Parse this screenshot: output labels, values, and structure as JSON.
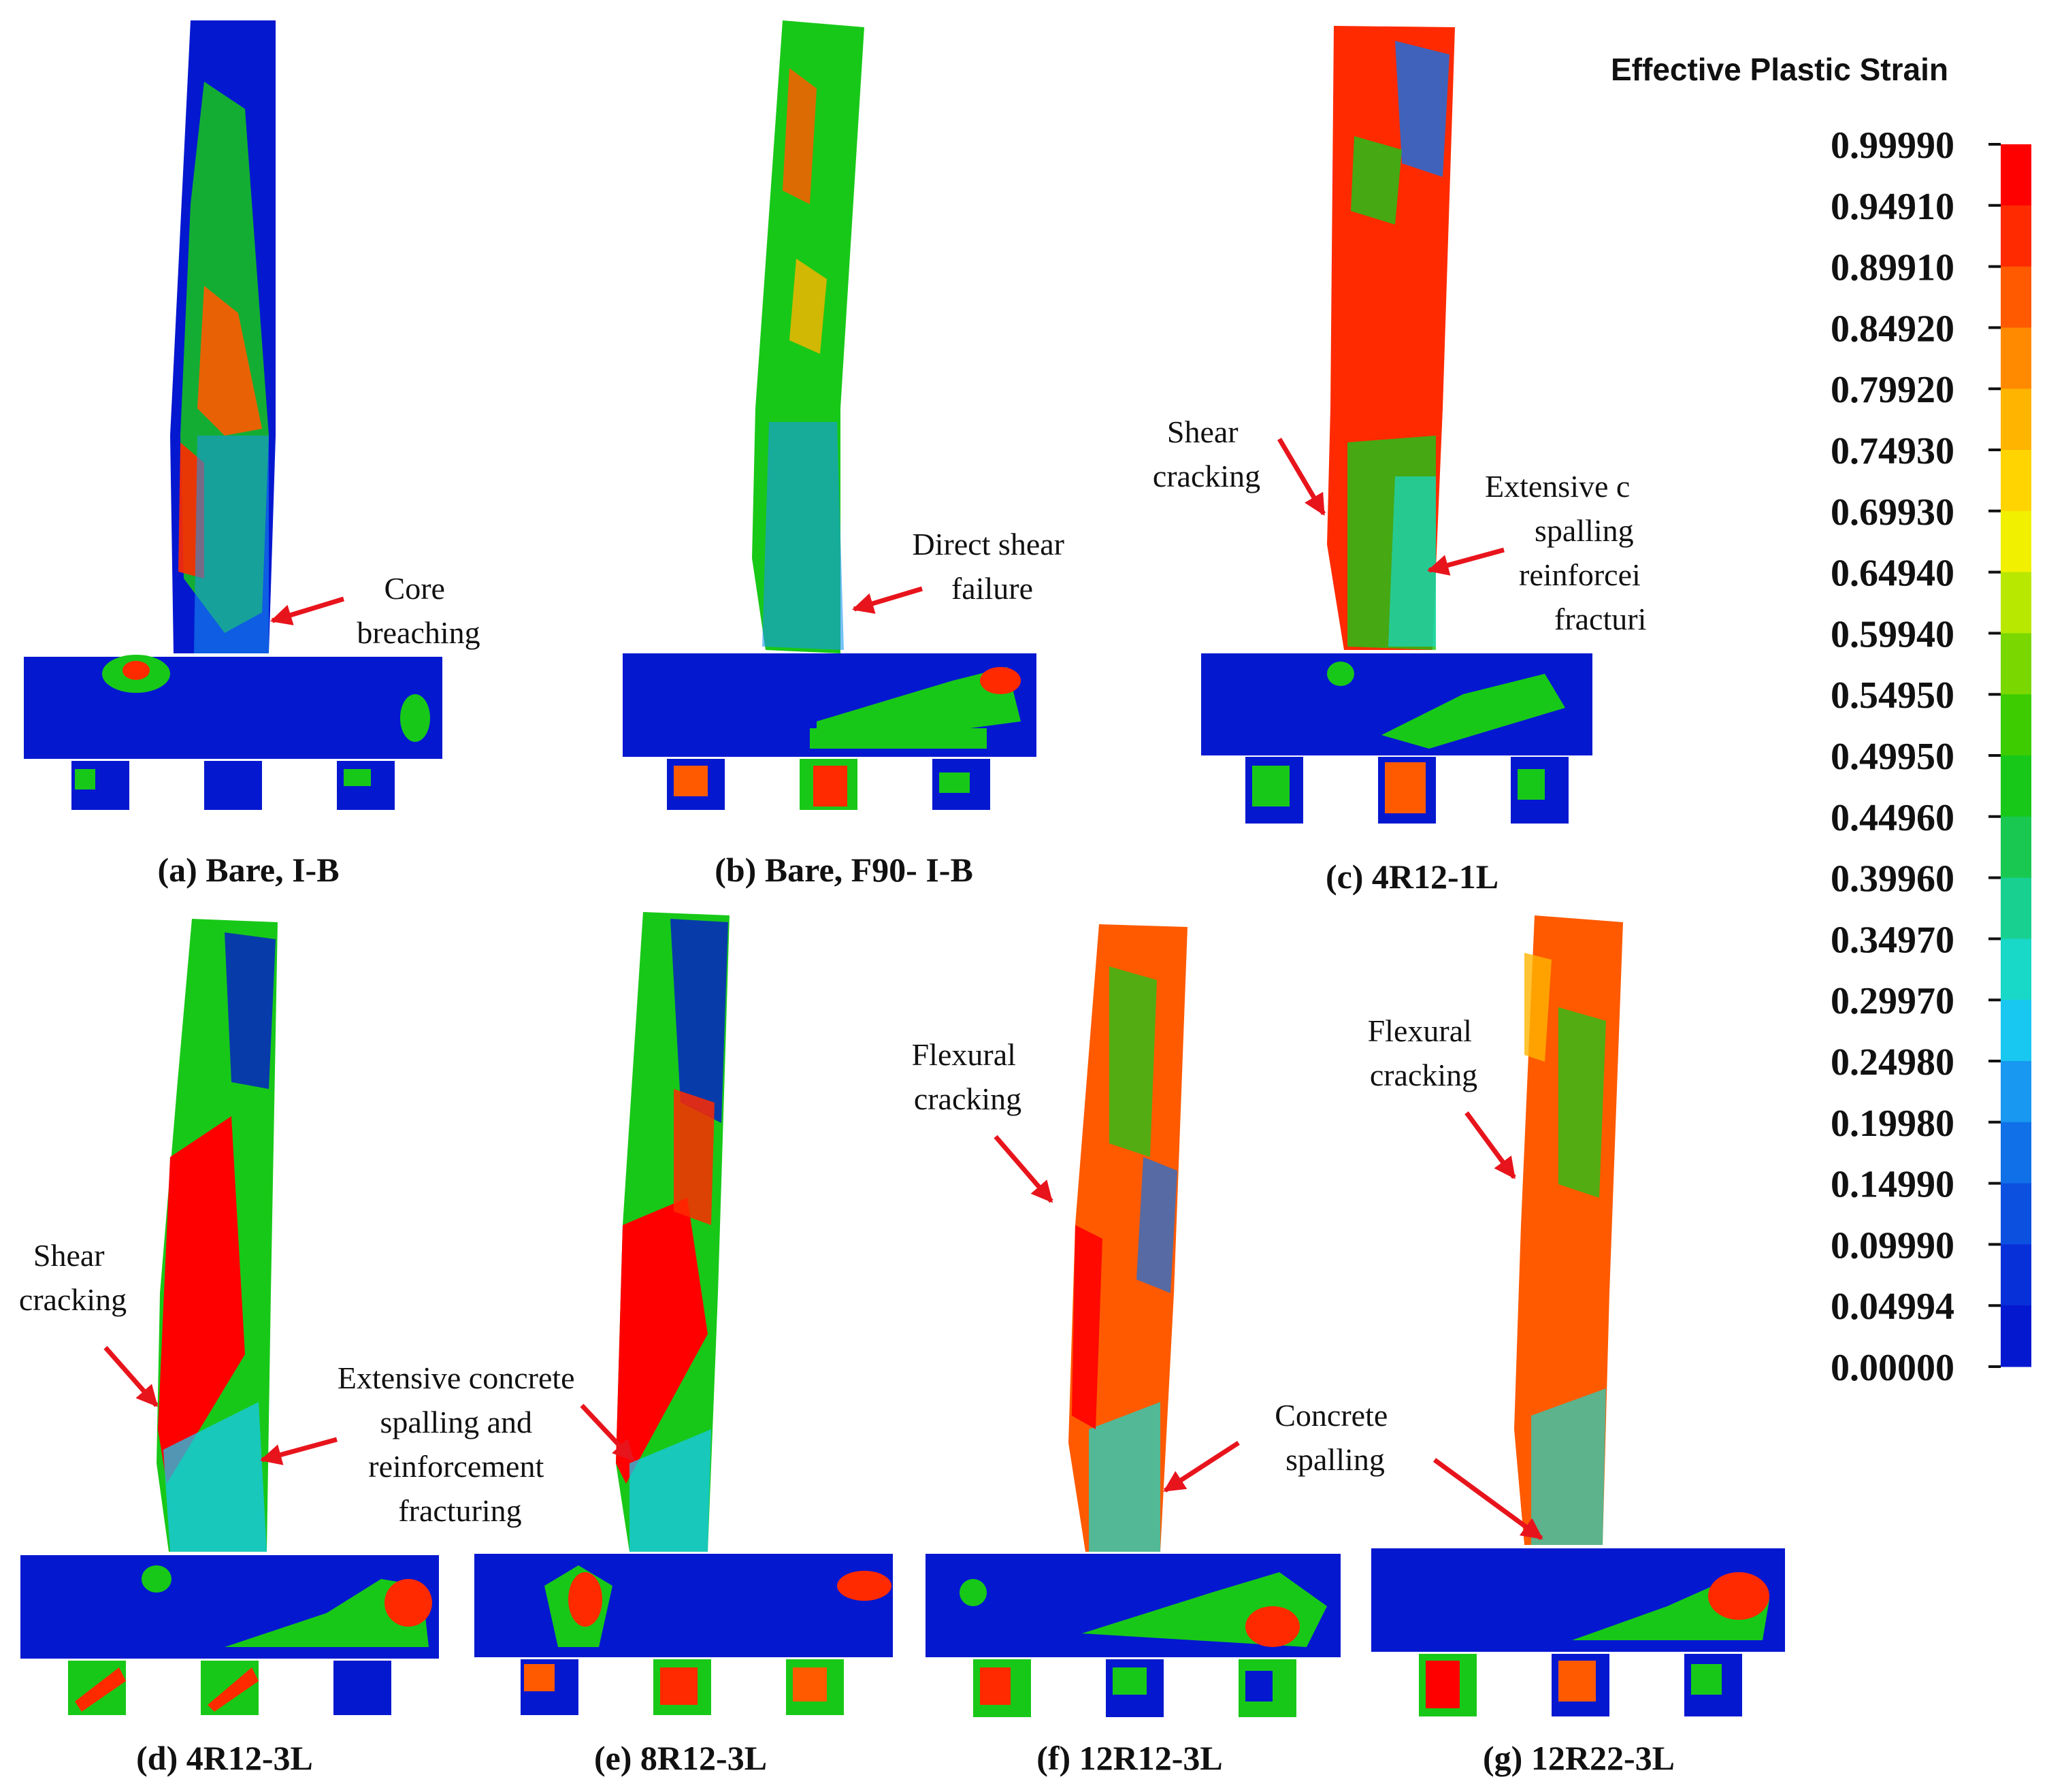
{
  "legend": {
    "title": "Effective Plastic Strain",
    "ticks": [
      "0.99990",
      "0.94910",
      "0.89910",
      "0.84920",
      "0.79920",
      "0.74930",
      "0.69930",
      "0.64940",
      "0.59940",
      "0.54950",
      "0.49950",
      "0.44960",
      "0.39960",
      "0.34970",
      "0.29970",
      "0.24980",
      "0.19980",
      "0.14990",
      "0.09990",
      "0.04994",
      "0.00000"
    ],
    "colors_top_to_bottom": [
      "#ff0000",
      "#ff2a00",
      "#ff5a00",
      "#ff8a00",
      "#ffb400",
      "#ffd400",
      "#f0f000",
      "#b8e800",
      "#7ad800",
      "#3ccc00",
      "#18c818",
      "#18c850",
      "#18d090",
      "#18d8c8",
      "#18c8f0",
      "#1898f0",
      "#1070e8",
      "#0c50e0",
      "#0830d8",
      "#0418d0"
    ]
  },
  "panels": [
    {
      "id": "a",
      "caption": "(a) Bare, I-B",
      "annotations": [
        {
          "lines": [
            "Core",
            "breaching"
          ]
        }
      ]
    },
    {
      "id": "b",
      "caption": "(b) Bare, F90- I-B",
      "annotations": [
        {
          "lines": [
            "Direct shear",
            "failure"
          ]
        }
      ]
    },
    {
      "id": "c",
      "caption": "(c) 4R12-1L",
      "annotations": [
        {
          "lines": [
            "Shear",
            "cracking"
          ]
        },
        {
          "lines": [
            "Extensive c",
            "spalling",
            "reinforcei",
            "fracturi"
          ]
        }
      ]
    },
    {
      "id": "d",
      "caption": "(d) 4R12-3L",
      "annotations": [
        {
          "lines": [
            "Shear",
            "cracking"
          ]
        },
        {
          "lines": [
            "Extensive concrete",
            "spalling  and",
            "reinforcement",
            "fracturing"
          ]
        }
      ]
    },
    {
      "id": "e",
      "caption": "(e) 8R12-3L",
      "annotations": []
    },
    {
      "id": "f",
      "caption": "(f) 12R12-3L",
      "annotations": [
        {
          "lines": [
            "Flexural",
            "cracking"
          ]
        },
        {
          "lines": [
            "Concrete",
            "spalling"
          ]
        }
      ]
    },
    {
      "id": "g",
      "caption": "(g) 12R22-3L",
      "annotations": [
        {
          "lines": [
            "Flexural",
            "cracking"
          ]
        }
      ]
    }
  ]
}
